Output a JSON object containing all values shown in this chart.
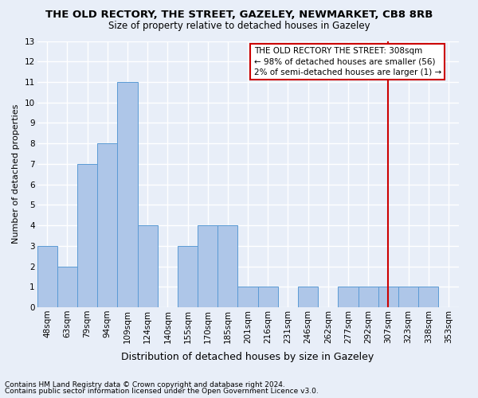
{
  "title": "THE OLD RECTORY, THE STREET, GAZELEY, NEWMARKET, CB8 8RB",
  "subtitle": "Size of property relative to detached houses in Gazeley",
  "xlabel": "Distribution of detached houses by size in Gazeley",
  "ylabel": "Number of detached properties",
  "footnote1": "Contains HM Land Registry data © Crown copyright and database right 2024.",
  "footnote2": "Contains public sector information licensed under the Open Government Licence v3.0.",
  "categories": [
    "48sqm",
    "63sqm",
    "79sqm",
    "94sqm",
    "109sqm",
    "124sqm",
    "140sqm",
    "155sqm",
    "170sqm",
    "185sqm",
    "201sqm",
    "216sqm",
    "231sqm",
    "246sqm",
    "262sqm",
    "277sqm",
    "292sqm",
    "307sqm",
    "323sqm",
    "338sqm",
    "353sqm"
  ],
  "values": [
    3,
    2,
    7,
    8,
    11,
    4,
    0,
    3,
    4,
    4,
    1,
    1,
    0,
    1,
    0,
    1,
    1,
    1,
    1,
    1,
    0
  ],
  "bar_color": "#aec6e8",
  "bar_edge_color": "#5b9bd5",
  "background_color": "#e8eef8",
  "grid_color": "#ffffff",
  "vline_x": 17,
  "vline_color": "#cc0000",
  "annotation_text": "THE OLD RECTORY THE STREET: 308sqm\n← 98% of detached houses are smaller (56)\n2% of semi-detached houses are larger (1) →",
  "annotation_box_color": "#ffffff",
  "annotation_box_edge_color": "#cc0000",
  "ylim": [
    0,
    13
  ],
  "yticks": [
    0,
    1,
    2,
    3,
    4,
    5,
    6,
    7,
    8,
    9,
    10,
    11,
    12,
    13
  ],
  "title_fontsize": 9.5,
  "subtitle_fontsize": 8.5,
  "ylabel_fontsize": 8,
  "xlabel_fontsize": 9,
  "tick_fontsize": 7.5,
  "footnote_fontsize": 6.5,
  "ann_fontsize": 7.5
}
